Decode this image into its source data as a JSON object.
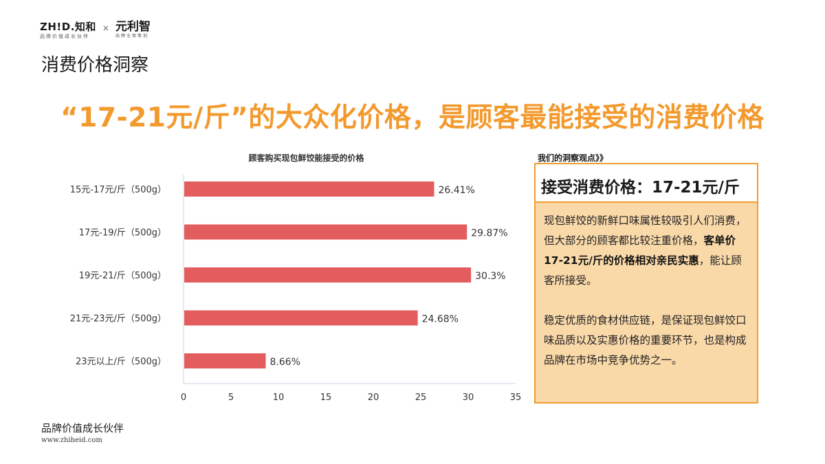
{
  "brand": {
    "logo1_main": "ZH!D.知和",
    "logo1_sub": "品牌价值成长伙伴",
    "separator": "×",
    "logo2_main": "元利智",
    "logo2_sub": "品牌全案策划"
  },
  "section_title": "消费价格洞察",
  "headline": "“17-21元/斤”的大众化价格，是顾客最能接受的消费价格",
  "insight": {
    "label": "我们的洞察观点》》",
    "header": "接受消费价格：17-21元/斤",
    "p1_a": "现包鲜饺的新鲜口味属性较吸引人们消费，但大部分的顾客都比较注重价格，",
    "p1_b": "客单价17-21元/斤的价格相对亲民实惠",
    "p1_c": "，能让顾客所接受。",
    "p2": "稳定优质的食材供应链，是保证现包鲜饺口味品质以及实惠价格的重要环节，也是构成品牌在市场中竞争优势之一。"
  },
  "footer": {
    "tagline": "品牌价值成长伙伴",
    "url": "www.zhiheid.com"
  },
  "colors": {
    "accent": "#F39A2E",
    "bar": "#E35D5E",
    "box_fill": "#FAD9A9",
    "axis": "#C9D3E4"
  },
  "chart_data": {
    "type": "bar",
    "orientation": "horizontal",
    "title": "顾客购买现包鲜饺能接受的价格",
    "categories": [
      "15元-17元/斤（500g）",
      "17元-19/斤（500g）",
      "19元-21/斤（500g）",
      "21元-23元/斤（500g）",
      "23元以上/斤（500g）"
    ],
    "values": [
      26.41,
      29.87,
      30.3,
      24.68,
      8.66
    ],
    "data_labels": [
      "26.41%",
      "29.87%",
      "30.3%",
      "24.68%",
      "8.66%"
    ],
    "x_ticks": [
      0,
      5,
      10,
      15,
      20,
      25,
      30,
      35
    ],
    "xlim": [
      0,
      35
    ],
    "grid": false
  }
}
